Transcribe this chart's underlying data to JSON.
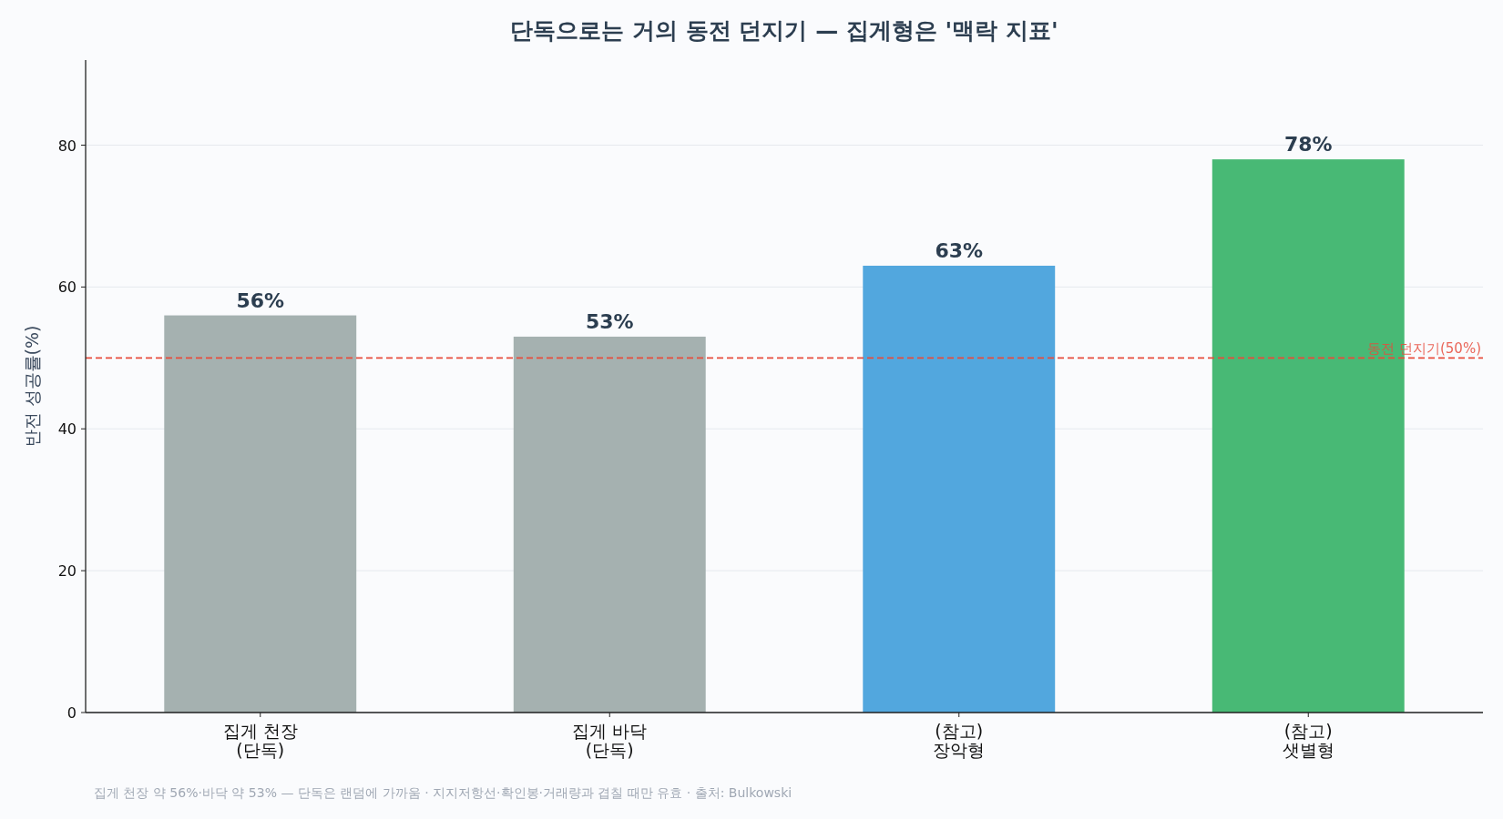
{
  "chart_data": {
    "type": "bar",
    "title": "단독으로는 거의 동전 던지기 — 집게형은 '맥락 지표'",
    "ylabel": "반전 성공률(%)",
    "categories": [
      "집게 천장\n(단독)",
      "집게 바닥\n(단독)",
      "(참고)\n장악형",
      "(참고)\n샛별형"
    ],
    "values": [
      56,
      53,
      63,
      78
    ],
    "colors": [
      "#a5b1b0",
      "#a5b1b0",
      "#52a7de",
      "#48b975"
    ],
    "value_labels": [
      "56%",
      "53%",
      "63%",
      "78%"
    ],
    "ylim": [
      0,
      92
    ],
    "yticks": [
      0,
      20,
      40,
      60,
      80
    ],
    "grid": "y",
    "ref_lines": [
      {
        "axis": "y",
        "value": 50,
        "label": "동전 던지기(50%)",
        "color": "#e74c3c",
        "line_style": "dashed"
      }
    ],
    "annotations": [
      "집게 천장 약 56%·바닥 약 53% — 단독은 랜덤에 가까움 · 지지저항선·확인봉·거래량과 겹칠 때만 유효 · 출처: Bulkowski"
    ]
  }
}
